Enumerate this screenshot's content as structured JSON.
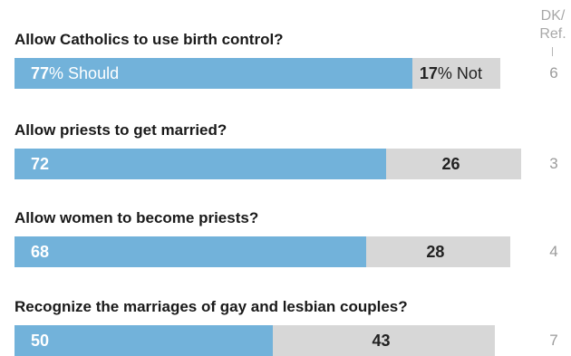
{
  "dk_header": "DK/\nRef.",
  "chart_data": {
    "type": "bar",
    "orientation": "horizontal",
    "stacked": true,
    "categories": [
      "Allow Catholics to use birth control?",
      "Allow priests to get married?",
      "Allow women to become priests?",
      "Recognize the marriages of gay and lesbian couples?"
    ],
    "series": [
      {
        "name": "Should",
        "values": [
          77,
          72,
          68,
          50
        ],
        "color": "#72b2da"
      },
      {
        "name": "Not",
        "values": [
          17,
          26,
          28,
          43
        ],
        "color": "#d7d7d7"
      },
      {
        "name": "DK/Ref.",
        "values": [
          6,
          3,
          4,
          7
        ],
        "color": "#ffffff"
      }
    ],
    "first_row_labels": {
      "should": "Should",
      "not": "Not",
      "percent": "%"
    }
  }
}
